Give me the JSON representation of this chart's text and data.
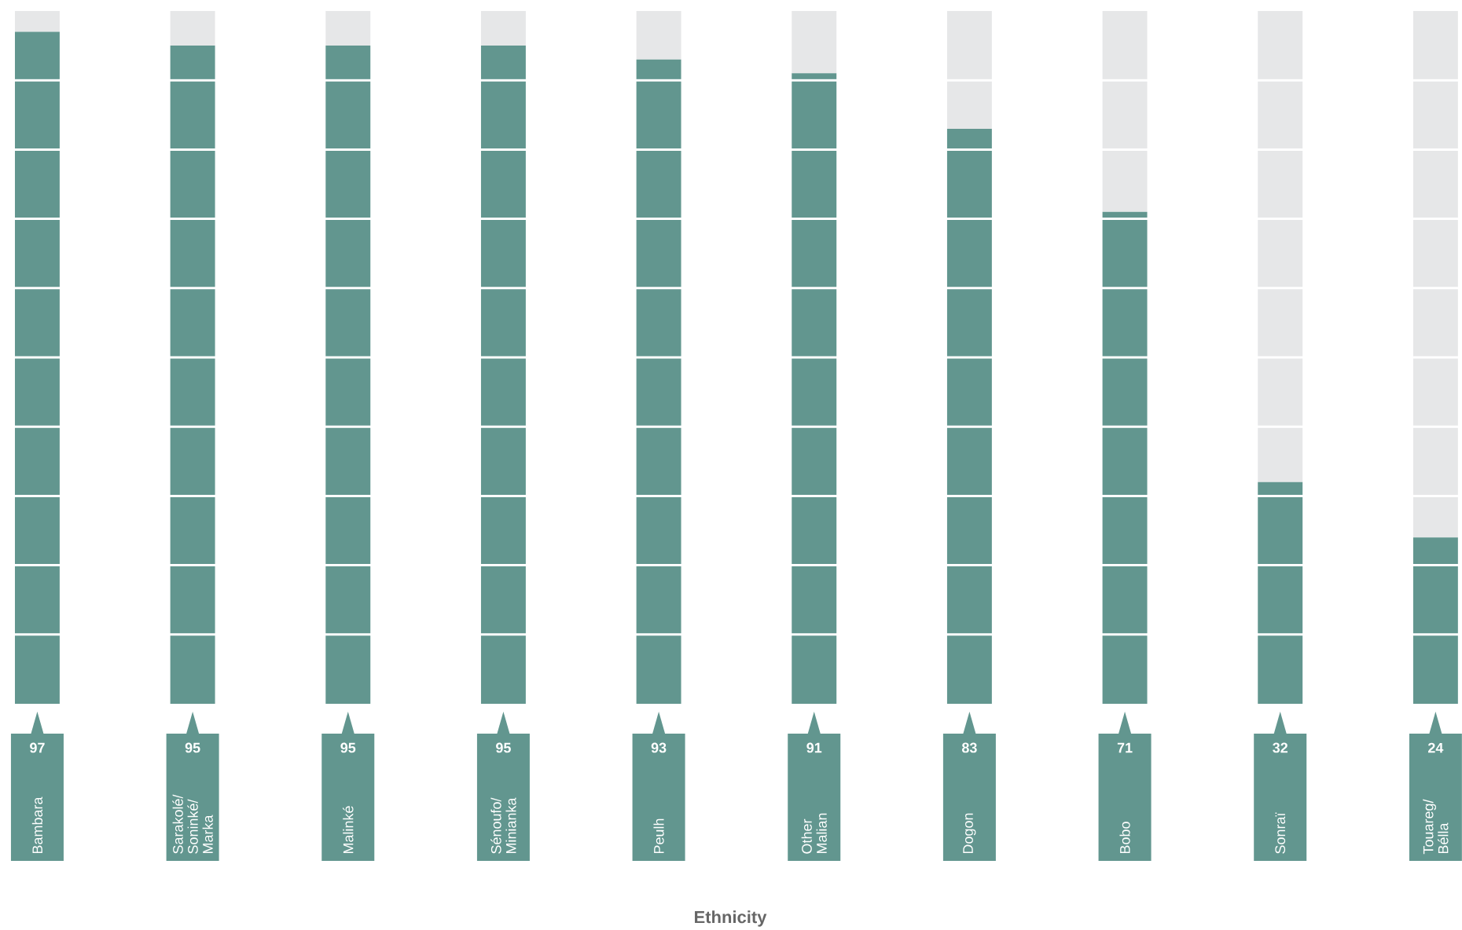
{
  "chart_data": {
    "type": "bar",
    "xlabel": "Ethnicity",
    "stacked": true,
    "ylim": [
      0,
      100
    ],
    "grid": "y",
    "yticks": [
      {
        "value": 10,
        "label": null
      },
      {
        "value": 20,
        "label": null
      },
      {
        "value": 30,
        "label": null
      },
      {
        "value": 40,
        "label": null
      },
      {
        "value": 50,
        "label": null
      },
      {
        "value": 60,
        "label": null
      },
      {
        "value": 70,
        "label": null
      },
      {
        "value": 80,
        "label": null
      },
      {
        "value": 90,
        "label": null
      }
    ],
    "categories": [
      "Bambara",
      "Sarakolé/ Soninké/ Marka",
      "Malinké",
      "Sénoufo/ Minianka",
      "Peulh",
      "Other Malian",
      "Dogon",
      "Bobo",
      "Sonraï",
      "Touareg/ Bélla"
    ],
    "series": [
      {
        "color": "#62968f",
        "values": [
          97,
          95,
          95,
          95,
          93,
          91,
          83,
          71,
          32,
          24
        ],
        "value_labels": [
          "97",
          "95",
          "95",
          "95",
          "93",
          "91",
          "83",
          "71",
          "32",
          "24"
        ]
      },
      {
        "color": "#e6e7e8",
        "values": [
          3,
          5,
          5,
          5,
          7,
          9,
          17,
          29,
          68,
          76
        ]
      }
    ]
  }
}
